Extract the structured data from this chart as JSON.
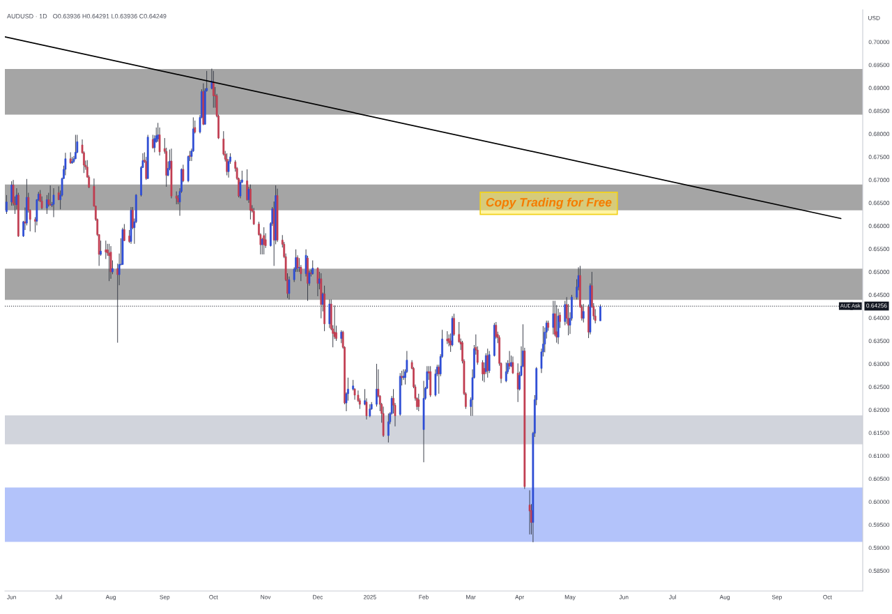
{
  "chart_data": {
    "type": "candlestick",
    "title": "AUDUSD · 1D",
    "subtitle": "O0.63936 H0.64291 L0.63936 C0.64249",
    "ylabel": "USD",
    "xlim": [
      "2024-05-30",
      "2025-10-22"
    ],
    "ylim": [
      0.5806,
      0.707
    ],
    "xticks": [
      {
        "value": "2024-06-03",
        "label": "Jun"
      },
      {
        "value": "2024-07-01",
        "label": "Jul"
      },
      {
        "value": "2024-08-01",
        "label": "Aug"
      },
      {
        "value": "2024-09-02",
        "label": "Sep"
      },
      {
        "value": "2024-10-01",
        "label": "Oct"
      },
      {
        "value": "2024-11-01",
        "label": "Nov"
      },
      {
        "value": "2024-12-02",
        "label": "Dec"
      },
      {
        "value": "2025-01-02",
        "label": "2025"
      },
      {
        "value": "2025-02-03",
        "label": "Feb"
      },
      {
        "value": "2025-03-03",
        "label": "Mar"
      },
      {
        "value": "2025-04-01",
        "label": "Apr"
      },
      {
        "value": "2025-05-01",
        "label": "May"
      },
      {
        "value": "2025-06-02",
        "label": "Jun"
      },
      {
        "value": "2025-07-01",
        "label": "Jul"
      },
      {
        "value": "2025-08-01",
        "label": "Aug"
      },
      {
        "value": "2025-09-01",
        "label": "Sep"
      },
      {
        "value": "2025-10-01",
        "label": "Oct"
      }
    ],
    "yticks": [
      {
        "value": 0.585,
        "label": "0.58500"
      },
      {
        "value": 0.59,
        "label": "0.59000"
      },
      {
        "value": 0.595,
        "label": "0.59500"
      },
      {
        "value": 0.6,
        "label": "0.60000"
      },
      {
        "value": 0.605,
        "label": "0.60500"
      },
      {
        "value": 0.61,
        "label": "0.61000"
      },
      {
        "value": 0.615,
        "label": "0.61500"
      },
      {
        "value": 0.62,
        "label": "0.62000"
      },
      {
        "value": 0.625,
        "label": "0.62500"
      },
      {
        "value": 0.63,
        "label": "0.63000"
      },
      {
        "value": 0.635,
        "label": "0.63500"
      },
      {
        "value": 0.64,
        "label": "0.64000"
      },
      {
        "value": 0.645,
        "label": "0.64500"
      },
      {
        "value": 0.65,
        "label": "0.65000"
      },
      {
        "value": 0.655,
        "label": "0.65500"
      },
      {
        "value": 0.66,
        "label": "0.66000"
      },
      {
        "value": 0.665,
        "label": "0.66500"
      },
      {
        "value": 0.67,
        "label": "0.67000"
      },
      {
        "value": 0.675,
        "label": "0.67500"
      },
      {
        "value": 0.68,
        "label": "0.68000"
      },
      {
        "value": 0.685,
        "label": "0.68500"
      },
      {
        "value": 0.69,
        "label": "0.69000"
      },
      {
        "value": 0.695,
        "label": "0.69500"
      },
      {
        "value": 0.7,
        "label": "0.70000"
      }
    ],
    "x": [
      "2024-05-31",
      "2024-06-03",
      "2024-06-04",
      "2024-06-05",
      "2024-06-06",
      "2024-06-07",
      "2024-06-10",
      "2024-06-11",
      "2024-06-12",
      "2024-06-13",
      "2024-06-14",
      "2024-06-17",
      "2024-06-18",
      "2024-06-19",
      "2024-06-20",
      "2024-06-21",
      "2024-06-24",
      "2024-06-25",
      "2024-06-26",
      "2024-06-27",
      "2024-06-28",
      "2024-07-01",
      "2024-07-02",
      "2024-07-03",
      "2024-07-04",
      "2024-07-05",
      "2024-07-08",
      "2024-07-09",
      "2024-07-10",
      "2024-07-11",
      "2024-07-12",
      "2024-07-15",
      "2024-07-16",
      "2024-07-17",
      "2024-07-18",
      "2024-07-19",
      "2024-07-22",
      "2024-07-23",
      "2024-07-24",
      "2024-07-25",
      "2024-07-26",
      "2024-07-29",
      "2024-07-30",
      "2024-07-31",
      "2024-08-01",
      "2024-08-02",
      "2024-08-05",
      "2024-08-06",
      "2024-08-07",
      "2024-08-08",
      "2024-08-09",
      "2024-08-12",
      "2024-08-13",
      "2024-08-14",
      "2024-08-15",
      "2024-08-16",
      "2024-08-19",
      "2024-08-20",
      "2024-08-21",
      "2024-08-22",
      "2024-08-23",
      "2024-08-26",
      "2024-08-27",
      "2024-08-28",
      "2024-08-29",
      "2024-08-30",
      "2024-09-02",
      "2024-09-03",
      "2024-09-04",
      "2024-09-05",
      "2024-09-06",
      "2024-09-09",
      "2024-09-10",
      "2024-09-11",
      "2024-09-12",
      "2024-09-13",
      "2024-09-16",
      "2024-09-17",
      "2024-09-18",
      "2024-09-19",
      "2024-09-20",
      "2024-09-23",
      "2024-09-24",
      "2024-09-25",
      "2024-09-26",
      "2024-09-27",
      "2024-09-30",
      "2024-10-01",
      "2024-10-02",
      "2024-10-03",
      "2024-10-04",
      "2024-10-07",
      "2024-10-08",
      "2024-10-09",
      "2024-10-10",
      "2024-10-11",
      "2024-10-14",
      "2024-10-15",
      "2024-10-16",
      "2024-10-17",
      "2024-10-18",
      "2024-10-21",
      "2024-10-22",
      "2024-10-23",
      "2024-10-24",
      "2024-10-25",
      "2024-10-28",
      "2024-10-29",
      "2024-10-30",
      "2024-10-31",
      "2024-11-01",
      "2024-11-04",
      "2024-11-05",
      "2024-11-06",
      "2024-11-07",
      "2024-11-08",
      "2024-11-11",
      "2024-11-12",
      "2024-11-13",
      "2024-11-14",
      "2024-11-15",
      "2024-11-18",
      "2024-11-19",
      "2024-11-20",
      "2024-11-21",
      "2024-11-22",
      "2024-11-25",
      "2024-11-26",
      "2024-11-27",
      "2024-11-28",
      "2024-11-29",
      "2024-12-02",
      "2024-12-03",
      "2024-12-04",
      "2024-12-05",
      "2024-12-06",
      "2024-12-09",
      "2024-12-10",
      "2024-12-11",
      "2024-12-12",
      "2024-12-13",
      "2024-12-16",
      "2024-12-17",
      "2024-12-18",
      "2024-12-19",
      "2024-12-20",
      "2024-12-23",
      "2024-12-24",
      "2024-12-26",
      "2024-12-27",
      "2024-12-30",
      "2024-12-31",
      "2025-01-02",
      "2025-01-03",
      "2025-01-06",
      "2025-01-07",
      "2025-01-08",
      "2025-01-09",
      "2025-01-10",
      "2025-01-13",
      "2025-01-14",
      "2025-01-15",
      "2025-01-16",
      "2025-01-17",
      "2025-01-20",
      "2025-01-21",
      "2025-01-22",
      "2025-01-23",
      "2025-01-24",
      "2025-01-27",
      "2025-01-28",
      "2025-01-29",
      "2025-01-30",
      "2025-01-31",
      "2025-02-03",
      "2025-02-04",
      "2025-02-05",
      "2025-02-06",
      "2025-02-07",
      "2025-02-10",
      "2025-02-11",
      "2025-02-12",
      "2025-02-13",
      "2025-02-14",
      "2025-02-17",
      "2025-02-18",
      "2025-02-19",
      "2025-02-20",
      "2025-02-21",
      "2025-02-24",
      "2025-02-25",
      "2025-02-26",
      "2025-02-27",
      "2025-02-28",
      "2025-03-03",
      "2025-03-04",
      "2025-03-05",
      "2025-03-06",
      "2025-03-07",
      "2025-03-10",
      "2025-03-11",
      "2025-03-12",
      "2025-03-13",
      "2025-03-14",
      "2025-03-17",
      "2025-03-18",
      "2025-03-19",
      "2025-03-20",
      "2025-03-21",
      "2025-03-24",
      "2025-03-25",
      "2025-03-26",
      "2025-03-27",
      "2025-03-28",
      "2025-03-31",
      "2025-04-01",
      "2025-04-02",
      "2025-04-03",
      "2025-04-04",
      "2025-04-07",
      "2025-04-08",
      "2025-04-09",
      "2025-04-10",
      "2025-04-11",
      "2025-04-14",
      "2025-04-15",
      "2025-04-16",
      "2025-04-17",
      "2025-04-18",
      "2025-04-21",
      "2025-04-22",
      "2025-04-23",
      "2025-04-24",
      "2025-04-25",
      "2025-04-28",
      "2025-04-29",
      "2025-04-30",
      "2025-05-01",
      "2025-05-02",
      "2025-05-05",
      "2025-05-06",
      "2025-05-07",
      "2025-05-08",
      "2025-05-09",
      "2025-05-12",
      "2025-05-13",
      "2025-05-14",
      "2025-05-15",
      "2025-05-16",
      "2025-05-19"
    ],
    "ohlc": [
      [
        0.6631,
        0.6667,
        0.6626,
        0.6652
      ],
      [
        0.6652,
        0.6697,
        0.6644,
        0.6689
      ],
      [
        0.6689,
        0.67,
        0.6644,
        0.6649
      ],
      [
        0.6649,
        0.6664,
        0.6626,
        0.6646
      ],
      [
        0.6646,
        0.6682,
        0.6636,
        0.6667
      ],
      [
        0.6667,
        0.6672,
        0.6576,
        0.6578
      ],
      [
        0.6578,
        0.6611,
        0.6576,
        0.6609
      ],
      [
        0.6609,
        0.664,
        0.6591,
        0.6606
      ],
      [
        0.6606,
        0.6702,
        0.6601,
        0.6662
      ],
      [
        0.6662,
        0.6672,
        0.6629,
        0.6634
      ],
      [
        0.6634,
        0.6636,
        0.6588,
        0.6614
      ],
      [
        0.6614,
        0.6619,
        0.6586,
        0.661
      ],
      [
        0.661,
        0.6658,
        0.6601,
        0.6657
      ],
      [
        0.6657,
        0.6674,
        0.6654,
        0.6669
      ],
      [
        0.6669,
        0.6678,
        0.6652,
        0.6654
      ],
      [
        0.6654,
        0.6664,
        0.6636,
        0.6639
      ],
      [
        0.6639,
        0.6667,
        0.6626,
        0.6657
      ],
      [
        0.6657,
        0.6672,
        0.6642,
        0.6647
      ],
      [
        0.6647,
        0.6688,
        0.6644,
        0.6645
      ],
      [
        0.6645,
        0.6652,
        0.6641,
        0.6647
      ],
      [
        0.6647,
        0.6682,
        0.6619,
        0.6667
      ],
      [
        0.6672,
        0.6686,
        0.6656,
        0.6657
      ],
      [
        0.6657,
        0.6677,
        0.6636,
        0.6667
      ],
      [
        0.6667,
        0.6705,
        0.6664,
        0.6703
      ],
      [
        0.6703,
        0.6731,
        0.6702,
        0.6723
      ],
      [
        0.6723,
        0.6759,
        0.671,
        0.6746
      ],
      [
        0.6746,
        0.676,
        0.6735,
        0.6737
      ],
      [
        0.6737,
        0.675,
        0.6735,
        0.674
      ],
      [
        0.674,
        0.6752,
        0.6737,
        0.6746
      ],
      [
        0.6746,
        0.6798,
        0.6745,
        0.676
      ],
      [
        0.676,
        0.6798,
        0.6758,
        0.6783
      ],
      [
        0.6776,
        0.6788,
        0.6757,
        0.6759
      ],
      [
        0.6759,
        0.6762,
        0.6715,
        0.6732
      ],
      [
        0.6732,
        0.6742,
        0.6722,
        0.6728
      ],
      [
        0.6728,
        0.6743,
        0.6705,
        0.6706
      ],
      [
        0.6706,
        0.671,
        0.6682,
        0.6684
      ],
      [
        0.6686,
        0.6703,
        0.6642,
        0.6643
      ],
      [
        0.6643,
        0.6644,
        0.6611,
        0.6614
      ],
      [
        0.6614,
        0.6616,
        0.6578,
        0.6581
      ],
      [
        0.6581,
        0.6582,
        0.6513,
        0.6538
      ],
      [
        0.6538,
        0.6568,
        0.6535,
        0.6545
      ],
      [
        0.6548,
        0.6568,
        0.6528,
        0.6543
      ],
      [
        0.6548,
        0.6561,
        0.6535,
        0.6541
      ],
      [
        0.6541,
        0.6561,
        0.648,
        0.6535
      ],
      [
        0.6543,
        0.6556,
        0.6485,
        0.65
      ],
      [
        0.65,
        0.6525,
        0.6495,
        0.6507
      ],
      [
        0.6507,
        0.6518,
        0.6346,
        0.6494
      ],
      [
        0.6494,
        0.654,
        0.6471,
        0.6516
      ],
      [
        0.6516,
        0.6573,
        0.6514,
        0.6517
      ],
      [
        0.6516,
        0.6596,
        0.6515,
        0.6592
      ],
      [
        0.6592,
        0.6604,
        0.6567,
        0.6568
      ],
      [
        0.6578,
        0.6591,
        0.6563,
        0.6566
      ],
      [
        0.6566,
        0.6641,
        0.6561,
        0.6634
      ],
      [
        0.6634,
        0.6641,
        0.6593,
        0.6596
      ],
      [
        0.6596,
        0.6616,
        0.6561,
        0.6609
      ],
      [
        0.6609,
        0.6669,
        0.6606,
        0.6667
      ],
      [
        0.6667,
        0.673,
        0.6664,
        0.6727
      ],
      [
        0.6727,
        0.6758,
        0.6726,
        0.6742
      ],
      [
        0.6743,
        0.676,
        0.6737,
        0.674
      ],
      [
        0.674,
        0.675,
        0.67,
        0.6703
      ],
      [
        0.6703,
        0.6798,
        0.6702,
        0.6793
      ],
      [
        0.6788,
        0.6798,
        0.6768,
        0.677
      ],
      [
        0.677,
        0.6797,
        0.676,
        0.679
      ],
      [
        0.6783,
        0.6814,
        0.6781,
        0.6796
      ],
      [
        0.6789,
        0.6824,
        0.6783,
        0.6798
      ],
      [
        0.6798,
        0.6814,
        0.6753,
        0.6761
      ],
      [
        0.6768,
        0.6791,
        0.6757,
        0.6762
      ],
      [
        0.6762,
        0.677,
        0.6685,
        0.671
      ],
      [
        0.671,
        0.674,
        0.6708,
        0.6725
      ],
      [
        0.6725,
        0.6766,
        0.6721,
        0.6741
      ],
      [
        0.6741,
        0.6768,
        0.666,
        0.6665
      ],
      [
        0.6665,
        0.6675,
        0.6647,
        0.666
      ],
      [
        0.666,
        0.6667,
        0.6647,
        0.6652
      ],
      [
        0.6652,
        0.6682,
        0.6622,
        0.6675
      ],
      [
        0.6675,
        0.6725,
        0.6672,
        0.6723
      ],
      [
        0.6723,
        0.6733,
        0.6695,
        0.6698
      ],
      [
        0.6698,
        0.6753,
        0.6695,
        0.6751
      ],
      [
        0.6753,
        0.6763,
        0.6741,
        0.6751
      ],
      [
        0.6751,
        0.6768,
        0.6741,
        0.6763
      ],
      [
        0.6763,
        0.6836,
        0.6761,
        0.6811
      ],
      [
        0.6814,
        0.6829,
        0.6801,
        0.6804
      ],
      [
        0.6804,
        0.6841,
        0.6801,
        0.6836
      ],
      [
        0.6836,
        0.6897,
        0.6834,
        0.6892
      ],
      [
        0.6892,
        0.691,
        0.6819,
        0.6821
      ],
      [
        0.6821,
        0.6899,
        0.682,
        0.6894
      ],
      [
        0.6894,
        0.6937,
        0.6892,
        0.6899
      ],
      [
        0.6899,
        0.6942,
        0.6897,
        0.6915
      ],
      [
        0.6912,
        0.6937,
        0.6857,
        0.6883
      ],
      [
        0.6884,
        0.6902,
        0.6857,
        0.6882
      ],
      [
        0.6883,
        0.6887,
        0.6836,
        0.6839
      ],
      [
        0.6839,
        0.6842,
        0.6789,
        0.6791
      ],
      [
        0.6789,
        0.6806,
        0.6753,
        0.6756
      ],
      [
        0.6756,
        0.6763,
        0.674,
        0.6745
      ],
      [
        0.6745,
        0.6758,
        0.671,
        0.6718
      ],
      [
        0.6718,
        0.6745,
        0.6705,
        0.674
      ],
      [
        0.674,
        0.6758,
        0.6735,
        0.675
      ],
      [
        0.6739,
        0.6743,
        0.6718,
        0.6725
      ],
      [
        0.6725,
        0.6728,
        0.67,
        0.6703
      ],
      [
        0.6703,
        0.6705,
        0.6662,
        0.6665
      ],
      [
        0.6665,
        0.67,
        0.666,
        0.6695
      ],
      [
        0.6695,
        0.672,
        0.6693,
        0.67
      ],
      [
        0.6698,
        0.6723,
        0.6655,
        0.6657
      ],
      [
        0.6657,
        0.6685,
        0.665,
        0.668
      ],
      [
        0.668,
        0.669,
        0.6614,
        0.6634
      ],
      [
        0.6637,
        0.6645,
        0.6629,
        0.6632
      ],
      [
        0.6632,
        0.6639,
        0.6602,
        0.6604
      ],
      [
        0.6604,
        0.6609,
        0.6579,
        0.6581
      ],
      [
        0.6581,
        0.6584,
        0.6538,
        0.6559
      ],
      [
        0.6559,
        0.6574,
        0.6538,
        0.6571
      ],
      [
        0.6579,
        0.6597,
        0.6538,
        0.6559
      ],
      [
        0.657,
        0.6584,
        0.6552,
        0.6557
      ],
      [
        0.6557,
        0.6608,
        0.6555,
        0.6605
      ],
      [
        0.6605,
        0.6641,
        0.66,
        0.6637
      ],
      [
        0.6637,
        0.6653,
        0.6513,
        0.6569
      ],
      [
        0.6569,
        0.6688,
        0.656,
        0.6666
      ],
      [
        0.6666,
        0.6681,
        0.6565,
        0.6569
      ],
      [
        0.6569,
        0.658,
        0.6553,
        0.656
      ],
      [
        0.656,
        0.6565,
        0.653,
        0.6533
      ],
      [
        0.6533,
        0.654,
        0.648,
        0.6483
      ],
      [
        0.6483,
        0.6497,
        0.6443,
        0.6453
      ],
      [
        0.6453,
        0.649,
        0.644,
        0.6483
      ],
      [
        0.6483,
        0.651,
        0.6478,
        0.6506
      ],
      [
        0.6506,
        0.6549,
        0.65,
        0.6531
      ],
      [
        0.6531,
        0.6536,
        0.65,
        0.6508
      ],
      [
        0.6508,
        0.653,
        0.65,
        0.651
      ],
      [
        0.651,
        0.6515,
        0.648,
        0.6496
      ],
      [
        0.6496,
        0.6549,
        0.649,
        0.6536
      ],
      [
        0.653,
        0.6535,
        0.6437,
        0.6475
      ],
      [
        0.6475,
        0.6503,
        0.647,
        0.6498
      ],
      [
        0.6498,
        0.6505,
        0.649,
        0.6496
      ],
      [
        0.6496,
        0.6525,
        0.6494,
        0.6508
      ],
      [
        0.6508,
        0.651,
        0.6447,
        0.6475
      ],
      [
        0.6475,
        0.65,
        0.6462,
        0.6485
      ],
      [
        0.6485,
        0.6497,
        0.6399,
        0.6429
      ],
      [
        0.6429,
        0.6455,
        0.6414,
        0.6452
      ],
      [
        0.6452,
        0.647,
        0.6371,
        0.6387
      ],
      [
        0.6387,
        0.644,
        0.6378,
        0.643
      ],
      [
        0.643,
        0.644,
        0.6373,
        0.6376
      ],
      [
        0.6376,
        0.6384,
        0.6336,
        0.6366
      ],
      [
        0.6369,
        0.6427,
        0.6354,
        0.6359
      ],
      [
        0.6368,
        0.6383,
        0.635,
        0.6355
      ],
      [
        0.6355,
        0.6373,
        0.6345,
        0.6369
      ],
      [
        0.6369,
        0.6372,
        0.6333,
        0.6336
      ],
      [
        0.6336,
        0.6338,
        0.6212,
        0.6215
      ],
      [
        0.6215,
        0.6238,
        0.6197,
        0.6235
      ],
      [
        0.6235,
        0.627,
        0.622,
        0.6245
      ],
      [
        0.6245,
        0.6265,
        0.6242,
        0.6252
      ],
      [
        0.6245,
        0.6247,
        0.6222,
        0.6232
      ],
      [
        0.6232,
        0.6242,
        0.6217,
        0.622
      ],
      [
        0.622,
        0.6225,
        0.6202,
        0.6212
      ],
      [
        0.6212,
        0.6245,
        0.621,
        0.622
      ],
      [
        0.6217,
        0.6225,
        0.6179,
        0.6187
      ],
      [
        0.6187,
        0.6212,
        0.6184,
        0.6202
      ],
      [
        0.6202,
        0.6217,
        0.62,
        0.6212
      ],
      [
        0.6212,
        0.63,
        0.6207,
        0.6245
      ],
      [
        0.6245,
        0.6288,
        0.6227,
        0.623
      ],
      [
        0.623,
        0.6232,
        0.6197,
        0.6212
      ],
      [
        0.6212,
        0.6215,
        0.6172,
        0.6192
      ],
      [
        0.6192,
        0.6207,
        0.6141,
        0.6144
      ],
      [
        0.6144,
        0.6192,
        0.6129,
        0.6174
      ],
      [
        0.6174,
        0.6195,
        0.6169,
        0.6192
      ],
      [
        0.6192,
        0.623,
        0.6189,
        0.6225
      ],
      [
        0.6225,
        0.6245,
        0.6192,
        0.621
      ],
      [
        0.621,
        0.6215,
        0.6164,
        0.6187
      ],
      [
        0.619,
        0.628,
        0.6187,
        0.6273
      ],
      [
        0.6273,
        0.6285,
        0.6253,
        0.627
      ],
      [
        0.627,
        0.6288,
        0.6265,
        0.6273
      ],
      [
        0.627,
        0.6288,
        0.6255,
        0.6283
      ],
      [
        0.6283,
        0.6328,
        0.628,
        0.6308
      ],
      [
        0.6303,
        0.6308,
        0.6288,
        0.629
      ],
      [
        0.629,
        0.6293,
        0.6247,
        0.625
      ],
      [
        0.625,
        0.6255,
        0.622,
        0.6225
      ],
      [
        0.6225,
        0.6227,
        0.62,
        0.6207
      ],
      [
        0.6222,
        0.6235,
        0.6197,
        0.6207
      ],
      [
        0.6157,
        0.6263,
        0.6086,
        0.6225
      ],
      [
        0.6225,
        0.625,
        0.6222,
        0.6247
      ],
      [
        0.6247,
        0.6295,
        0.6245,
        0.6283
      ],
      [
        0.6283,
        0.6295,
        0.6265,
        0.628
      ],
      [
        0.6283,
        0.6295,
        0.6228,
        0.6232
      ],
      [
        0.6232,
        0.6288,
        0.6229,
        0.6278
      ],
      [
        0.6278,
        0.6298,
        0.6273,
        0.6293
      ],
      [
        0.6293,
        0.6298,
        0.6235,
        0.6278
      ],
      [
        0.6278,
        0.6321,
        0.6273,
        0.6316
      ],
      [
        0.6316,
        0.6374,
        0.6313,
        0.6354
      ],
      [
        0.6354,
        0.6371,
        0.6343,
        0.635
      ],
      [
        0.6355,
        0.6364,
        0.6338,
        0.6346
      ],
      [
        0.635,
        0.6366,
        0.6326,
        0.6341
      ],
      [
        0.6341,
        0.6404,
        0.6338,
        0.6399
      ],
      [
        0.6399,
        0.6409,
        0.6361,
        0.6364
      ],
      [
        0.6364,
        0.6391,
        0.6346,
        0.6348
      ],
      [
        0.6348,
        0.6355,
        0.633,
        0.6343
      ],
      [
        0.6346,
        0.635,
        0.6301,
        0.6306
      ],
      [
        0.6306,
        0.631,
        0.6232,
        0.6235
      ],
      [
        0.6235,
        0.6238,
        0.6202,
        0.6207
      ],
      [
        0.6207,
        0.6227,
        0.6187,
        0.6222
      ],
      [
        0.6222,
        0.6288,
        0.6187,
        0.627
      ],
      [
        0.627,
        0.6341,
        0.6268,
        0.6333
      ],
      [
        0.6336,
        0.6364,
        0.632,
        0.633
      ],
      [
        0.633,
        0.6338,
        0.6298,
        0.6303
      ],
      [
        0.6303,
        0.6308,
        0.6263,
        0.6278
      ],
      [
        0.629,
        0.6303,
        0.626,
        0.6278
      ],
      [
        0.6283,
        0.6323,
        0.6278,
        0.6318
      ],
      [
        0.6318,
        0.6333,
        0.627,
        0.6285
      ],
      [
        0.6285,
        0.6328,
        0.628,
        0.632
      ],
      [
        0.6318,
        0.6389,
        0.6316,
        0.6384
      ],
      [
        0.6384,
        0.6391,
        0.6355,
        0.6359
      ],
      [
        0.6364,
        0.637,
        0.6345,
        0.6357
      ],
      [
        0.6357,
        0.6362,
        0.6296,
        0.6301
      ],
      [
        0.6301,
        0.6303,
        0.6258,
        0.6268
      ],
      [
        0.6263,
        0.6303,
        0.626,
        0.6283
      ],
      [
        0.6283,
        0.6308,
        0.6278,
        0.6301
      ],
      [
        0.6301,
        0.6328,
        0.6288,
        0.6295
      ],
      [
        0.6295,
        0.6318,
        0.6293,
        0.6303
      ],
      [
        0.6303,
        0.6316,
        0.6278,
        0.628
      ],
      [
        0.628,
        0.6301,
        0.6217,
        0.6245
      ],
      [
        0.6245,
        0.6283,
        0.6242,
        0.6275
      ],
      [
        0.6275,
        0.6338,
        0.6273,
        0.6295
      ],
      [
        0.6295,
        0.6386,
        0.6293,
        0.6328
      ],
      [
        0.6328,
        0.6335,
        0.6028,
        0.6033
      ],
      [
        0.5993,
        0.6025,
        0.5929,
        0.598
      ],
      [
        0.5981,
        0.5995,
        0.5929,
        0.5955
      ],
      [
        0.5955,
        0.6152,
        0.5912,
        0.6149
      ],
      [
        0.6149,
        0.6232,
        0.6141,
        0.6222
      ],
      [
        0.6222,
        0.6293,
        0.621,
        0.629
      ],
      [
        0.629,
        0.6333,
        0.628,
        0.6326
      ],
      [
        0.6326,
        0.6382,
        0.6316,
        0.6343
      ],
      [
        0.6343,
        0.6379,
        0.6325,
        0.6369
      ],
      [
        0.6369,
        0.6394,
        0.6355,
        0.6389
      ],
      [
        0.6389,
        0.6394,
        0.6372,
        0.6379
      ],
      [
        0.6379,
        0.6437,
        0.6364,
        0.6409
      ],
      [
        0.6409,
        0.6437,
        0.636,
        0.6364
      ],
      [
        0.637,
        0.6428,
        0.6346,
        0.6358
      ],
      [
        0.6358,
        0.642,
        0.6343,
        0.6404
      ],
      [
        0.6406,
        0.6412,
        0.6378,
        0.6392
      ],
      [
        0.6392,
        0.6437,
        0.6384,
        0.6429
      ],
      [
        0.6429,
        0.6445,
        0.6387,
        0.6399
      ],
      [
        0.6399,
        0.643,
        0.6362,
        0.6384
      ],
      [
        0.6384,
        0.6412,
        0.6365,
        0.6399
      ],
      [
        0.6399,
        0.645,
        0.6394,
        0.6445
      ],
      [
        0.6445,
        0.6484,
        0.644,
        0.6467
      ],
      [
        0.6467,
        0.651,
        0.646,
        0.6492
      ],
      [
        0.6492,
        0.6513,
        0.6422,
        0.6424
      ],
      [
        0.6424,
        0.6429,
        0.6394,
        0.6399
      ],
      [
        0.6399,
        0.643,
        0.639,
        0.6414
      ],
      [
        0.6424,
        0.6429,
        0.6356,
        0.6369
      ],
      [
        0.6369,
        0.6475,
        0.6364,
        0.647
      ],
      [
        0.647,
        0.65,
        0.6422,
        0.6424
      ],
      [
        0.6424,
        0.6432,
        0.6396,
        0.6404
      ],
      [
        0.6404,
        0.6419,
        0.6388,
        0.6394
      ],
      [
        0.63936,
        0.64291,
        0.63936,
        0.64249
      ]
    ],
    "colors": [
      "#2b4bd5",
      "#2b4bd5",
      "#c13c4f",
      "#c13c4f",
      "#2b4bd5",
      "#c13c4f",
      "#2b4bd5",
      "#c13c4f",
      "#2b4bd5",
      "#c13c4f",
      "#c13c4f",
      "#c13c4f",
      "#2b4bd5",
      "#2b4bd5",
      "#c13c4f",
      "#c13c4f",
      "#2b4bd5",
      "#c13c4f",
      "#c13c4f",
      "#2b4bd5",
      "#2b4bd5",
      "#c13c4f",
      "#2b4bd5",
      "#2b4bd5",
      "#2b4bd5",
      "#2b4bd5",
      "#c13c4f",
      "#2b4bd5",
      "#2b4bd5",
      "#2b4bd5",
      "#2b4bd5",
      "#c13c4f",
      "#c13c4f",
      "#c13c4f",
      "#c13c4f",
      "#c13c4f",
      "#c13c4f",
      "#c13c4f",
      "#c13c4f",
      "#c13c4f",
      "#2b4bd5",
      "#c13c4f",
      "#c13c4f",
      "#c13c4f",
      "#c13c4f",
      "#2b4bd5",
      "#c13c4f",
      "#2b4bd5",
      "#2b4bd5",
      "#2b4bd5",
      "#c13c4f",
      "#c13c4f",
      "#2b4bd5",
      "#c13c4f",
      "#2b4bd5",
      "#2b4bd5",
      "#2b4bd5",
      "#2b4bd5",
      "#c13c4f",
      "#c13c4f",
      "#2b4bd5",
      "#c13c4f",
      "#2b4bd5",
      "#2b4bd5",
      "#2b4bd5",
      "#c13c4f",
      "#c13c4f",
      "#c13c4f",
      "#2b4bd5",
      "#2b4bd5",
      "#c13c4f",
      "#c13c4f",
      "#c13c4f",
      "#2b4bd5",
      "#2b4bd5",
      "#c13c4f",
      "#2b4bd5",
      "#c13c4f",
      "#2b4bd5",
      "#2b4bd5",
      "#c13c4f",
      "#2b4bd5",
      "#2b4bd5",
      "#c13c4f",
      "#2b4bd5",
      "#2b4bd5",
      "#2b4bd5",
      "#c13c4f",
      "#c13c4f",
      "#c13c4f",
      "#c13c4f",
      "#c13c4f",
      "#c13c4f",
      "#c13c4f",
      "#2b4bd5",
      "#2b4bd5",
      "#c13c4f",
      "#c13c4f",
      "#c13c4f",
      "#2b4bd5",
      "#2b4bd5",
      "#c13c4f",
      "#2b4bd5",
      "#c13c4f",
      "#c13c4f",
      "#c13c4f",
      "#c13c4f",
      "#c13c4f",
      "#2b4bd5",
      "#c13c4f",
      "#c13c4f",
      "#2b4bd5",
      "#2b4bd5",
      "#c13c4f",
      "#2b4bd5",
      "#c13c4f",
      "#c13c4f",
      "#c13c4f",
      "#c13c4f",
      "#c13c4f",
      "#2b4bd5",
      "#2b4bd5",
      "#2b4bd5",
      "#c13c4f",
      "#2b4bd5",
      "#c13c4f",
      "#2b4bd5",
      "#c13c4f",
      "#2b4bd5",
      "#c13c4f",
      "#2b4bd5",
      "#c13c4f",
      "#2b4bd5",
      "#c13c4f",
      "#2b4bd5",
      "#c13c4f",
      "#2b4bd5",
      "#c13c4f",
      "#c13c4f",
      "#c13c4f",
      "#c13c4f",
      "#2b4bd5",
      "#c13c4f",
      "#c13c4f",
      "#2b4bd5",
      "#2b4bd5",
      "#2b4bd5",
      "#c13c4f",
      "#c13c4f",
      "#c13c4f",
      "#2b4bd5",
      "#c13c4f",
      "#2b4bd5",
      "#2b4bd5",
      "#2b4bd5",
      "#c13c4f",
      "#c13c4f",
      "#c13c4f",
      "#c13c4f",
      "#2b4bd5",
      "#2b4bd5",
      "#2b4bd5",
      "#c13c4f",
      "#c13c4f",
      "#2b4bd5",
      "#c13c4f",
      "#2b4bd5",
      "#2b4bd5",
      "#2b4bd5",
      "#c13c4f",
      "#c13c4f",
      "#c13c4f",
      "#c13c4f",
      "#c13c4f",
      "#2b4bd5",
      "#2b4bd5",
      "#2b4bd5",
      "#c13c4f",
      "#c13c4f",
      "#2b4bd5",
      "#2b4bd5",
      "#c13c4f",
      "#2b4bd5",
      "#2b4bd5",
      "#c13c4f",
      "#c13c4f",
      "#c13c4f",
      "#2b4bd5",
      "#c13c4f",
      "#c13c4f",
      "#c13c4f",
      "#c13c4f",
      "#c13c4f",
      "#c13c4f",
      "#2b4bd5",
      "#2b4bd5",
      "#2b4bd5",
      "#c13c4f",
      "#c13c4f",
      "#c13c4f",
      "#c13c4f",
      "#2b4bd5",
      "#c13c4f",
      "#2b4bd5",
      "#2b4bd5",
      "#c13c4f",
      "#c13c4f",
      "#c13c4f",
      "#c13c4f",
      "#2b4bd5",
      "#2b4bd5",
      "#c13c4f",
      "#2b4bd5",
      "#c13c4f",
      "#c13c4f",
      "#2b4bd5",
      "#2b4bd5",
      "#2b4bd5",
      "#c13c4f",
      "#c13c4f",
      "#c13c4f",
      "#2b4bd5",
      "#2b4bd5",
      "#2b4bd5",
      "#2b4bd5",
      "#2b4bd5",
      "#2b4bd5",
      "#2b4bd5",
      "#c13c4f",
      "#2b4bd5",
      "#c13c4f",
      "#c13c4f",
      "#2b4bd5",
      "#c13c4f",
      "#2b4bd5",
      "#c13c4f",
      "#c13c4f",
      "#2b4bd5",
      "#2b4bd5",
      "#2b4bd5",
      "#2b4bd5",
      "#c13c4f",
      "#c13c4f",
      "#2b4bd5",
      "#c13c4f",
      "#2b4bd5",
      "#c13c4f",
      "#c13c4f",
      "#c13c4f",
      "#2b4bd5"
    ],
    "series": [
      {
        "type": "line",
        "color": "#000000",
        "x": [
          "2024-05-30",
          "2025-10-09"
        ],
        "values": [
          0.7011,
          0.6616
        ]
      }
    ],
    "bands": [
      {
        "axis": "y",
        "from": 0.6842,
        "to": 0.6941,
        "color": "#a5a5a5"
      },
      {
        "axis": "y",
        "from": 0.6634,
        "to": 0.669,
        "color": "#a5a5a5"
      },
      {
        "axis": "y",
        "from": 0.6439,
        "to": 0.6507,
        "color": "#a5a5a5"
      },
      {
        "axis": "y",
        "from": 0.6125,
        "to": 0.6188,
        "color": "#d1d4dc"
      },
      {
        "axis": "y",
        "from": 0.5913,
        "to": 0.6031,
        "color": "#b3c3fa"
      }
    ],
    "ref_lines": [
      {
        "axis": "y",
        "value": 0.64256,
        "label": "0.64256",
        "color": "#131722",
        "line_style": "dotted"
      }
    ],
    "annotations": [
      "Copy Trading for Free",
      {
        "text": "AUD",
        "x": "2025-10-12",
        "y": 0.64256
      },
      {
        "text": "Ask",
        "x": "2025-10-18",
        "y": 0.64256
      }
    ]
  }
}
